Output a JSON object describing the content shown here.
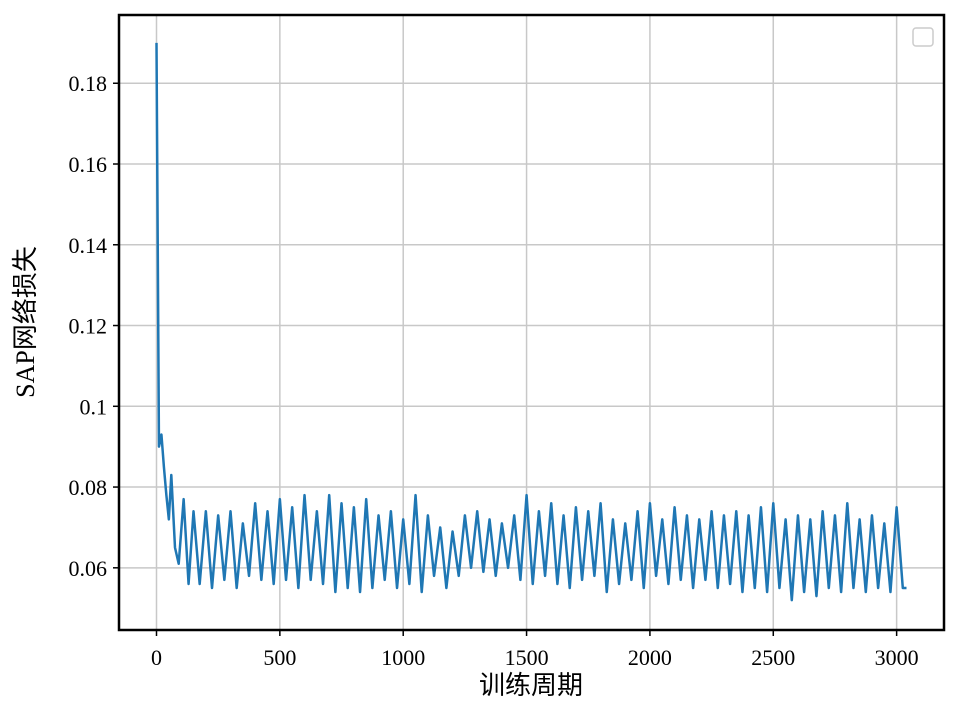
{
  "chart_data": {
    "type": "line",
    "xlabel": "训练周期",
    "ylabel": "SAP网络损失",
    "xlim": [
      -152,
      3192
    ],
    "ylim": [
      0.0446,
      0.1969
    ],
    "xticks": [
      0,
      500,
      1000,
      1500,
      2000,
      2500,
      3000
    ],
    "yticks": [
      0.06,
      0.08,
      0.1,
      0.12,
      0.14,
      0.16,
      0.18
    ],
    "grid": true,
    "x": [
      0,
      10,
      20,
      30,
      40,
      50,
      60,
      75,
      90,
      110,
      130,
      150,
      175,
      200,
      225,
      250,
      275,
      300,
      325,
      350,
      375,
      400,
      425,
      450,
      475,
      500,
      525,
      550,
      575,
      600,
      625,
      650,
      675,
      700,
      725,
      750,
      775,
      800,
      825,
      850,
      875,
      900,
      925,
      950,
      975,
      1000,
      1025,
      1050,
      1075,
      1100,
      1125,
      1150,
      1175,
      1200,
      1225,
      1250,
      1275,
      1300,
      1325,
      1350,
      1375,
      1400,
      1425,
      1450,
      1475,
      1500,
      1525,
      1550,
      1575,
      1600,
      1625,
      1650,
      1675,
      1700,
      1725,
      1750,
      1775,
      1800,
      1825,
      1850,
      1875,
      1900,
      1925,
      1950,
      1975,
      2000,
      2025,
      2050,
      2075,
      2100,
      2125,
      2150,
      2175,
      2200,
      2225,
      2250,
      2275,
      2300,
      2325,
      2350,
      2375,
      2400,
      2425,
      2450,
      2475,
      2500,
      2525,
      2550,
      2575,
      2600,
      2625,
      2650,
      2675,
      2700,
      2725,
      2750,
      2775,
      2800,
      2825,
      2850,
      2875,
      2900,
      2925,
      2950,
      2975,
      3000,
      3025,
      3040
    ],
    "series": [
      {
        "color": "#1f77b4",
        "values": [
          0.19,
          0.09,
          0.093,
          0.085,
          0.078,
          0.072,
          0.083,
          0.065,
          0.061,
          0.077,
          0.056,
          0.074,
          0.056,
          0.074,
          0.055,
          0.073,
          0.057,
          0.074,
          0.055,
          0.071,
          0.058,
          0.076,
          0.057,
          0.074,
          0.056,
          0.077,
          0.057,
          0.075,
          0.055,
          0.078,
          0.057,
          0.074,
          0.056,
          0.078,
          0.054,
          0.076,
          0.055,
          0.075,
          0.054,
          0.077,
          0.055,
          0.073,
          0.057,
          0.074,
          0.055,
          0.072,
          0.056,
          0.078,
          0.054,
          0.073,
          0.058,
          0.07,
          0.055,
          0.069,
          0.058,
          0.073,
          0.06,
          0.074,
          0.059,
          0.072,
          0.058,
          0.071,
          0.06,
          0.073,
          0.057,
          0.078,
          0.056,
          0.074,
          0.058,
          0.076,
          0.056,
          0.073,
          0.055,
          0.075,
          0.057,
          0.074,
          0.058,
          0.076,
          0.054,
          0.072,
          0.056,
          0.071,
          0.057,
          0.074,
          0.055,
          0.076,
          0.058,
          0.072,
          0.056,
          0.075,
          0.057,
          0.073,
          0.055,
          0.072,
          0.057,
          0.074,
          0.055,
          0.073,
          0.056,
          0.074,
          0.054,
          0.073,
          0.055,
          0.075,
          0.054,
          0.076,
          0.055,
          0.072,
          0.052,
          0.073,
          0.054,
          0.072,
          0.053,
          0.074,
          0.055,
          0.073,
          0.054,
          0.076,
          0.055,
          0.072,
          0.054,
          0.073,
          0.055,
          0.071,
          0.054,
          0.075,
          0.055,
          0.055
        ]
      }
    ]
  }
}
